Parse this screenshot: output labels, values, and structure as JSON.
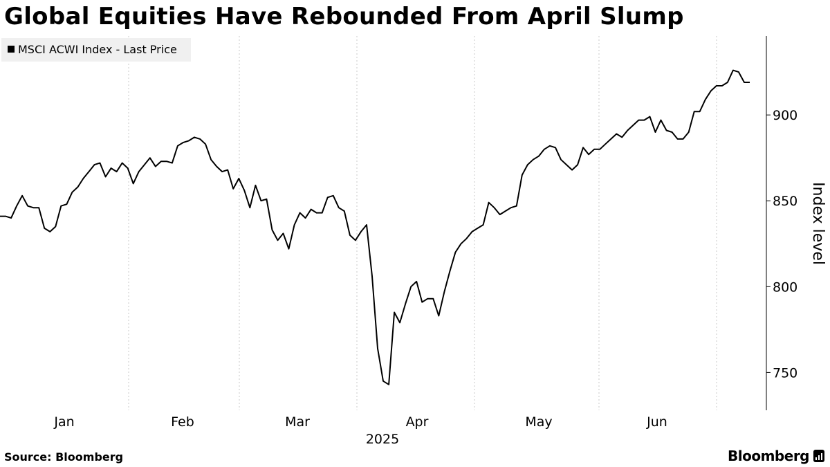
{
  "header": {
    "title": "Global Equities Have Rebounded From April Slump"
  },
  "footer": {
    "source": "Source: Bloomberg",
    "brand": "Bloomberg",
    "brand_icon": "bloomberg-terminal-icon"
  },
  "colors": {
    "line": "#000000",
    "grid": "#c8c8c8",
    "legend_bg": "#f0f0f0"
  },
  "chart_data": {
    "type": "line",
    "title": "Global Equities Have Rebounded From April Slump",
    "xlabel": "2025",
    "ylabel": "Index level",
    "year_label": "2025",
    "ylim": [
      728,
      946
    ],
    "yticks": [
      750,
      800,
      850,
      900
    ],
    "ytick_labels": [
      "750",
      "800",
      "850",
      "900"
    ],
    "y_axis_position": "right",
    "grid": "vertical dotted",
    "legend": {
      "position": "top-left",
      "entries": [
        "MSCI ACWI Index - Last Price"
      ]
    },
    "month_ticks": [
      "Jan",
      "Feb",
      "Mar",
      "Apr",
      "May",
      "Jun"
    ],
    "series": [
      {
        "name": "MSCI ACWI Index - Last Price",
        "values": [
          841,
          841,
          840,
          847,
          853,
          847,
          846,
          846,
          834,
          832,
          835,
          847,
          848,
          855,
          858,
          863,
          867,
          871,
          872,
          864,
          869,
          867,
          872,
          869,
          860,
          867,
          871,
          875,
          870,
          873,
          873,
          872,
          882,
          884,
          885,
          887,
          886,
          883,
          874,
          870,
          867,
          868,
          857,
          863,
          856,
          846,
          859,
          850,
          851,
          833,
          827,
          831,
          822,
          836,
          843,
          840,
          845,
          843,
          843,
          852,
          853,
          846,
          844,
          830,
          827,
          832,
          836,
          806,
          764,
          745,
          743,
          785,
          779,
          790,
          800,
          803,
          791,
          793,
          793,
          783,
          797,
          809,
          820,
          825,
          828,
          832,
          834,
          836,
          849,
          846,
          842,
          844,
          846,
          847,
          865,
          871,
          874,
          876,
          880,
          882,
          881,
          874,
          871,
          868,
          871,
          881,
          877,
          880,
          880,
          883,
          886,
          889,
          887,
          891,
          894,
          897,
          897,
          899,
          890,
          897,
          891,
          890,
          886,
          886,
          890,
          902,
          902,
          909,
          914,
          917,
          917,
          919,
          926,
          925,
          919,
          919
        ]
      }
    ]
  }
}
